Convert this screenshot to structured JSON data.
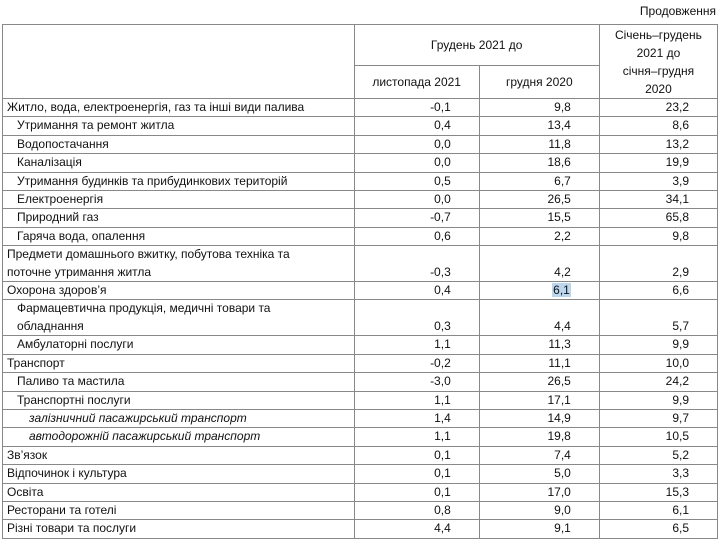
{
  "header": {
    "continuation": "Продовження",
    "group": "Грудень 2021 до",
    "columns": [
      "листопада 2021",
      "грудня 2020"
    ],
    "annual": [
      "Січень–грудень",
      "2021 до",
      "січня–грудня",
      "2020"
    ]
  },
  "table": {
    "rows": [
      {
        "label": [
          "Житло, вода, електроенергія, газ та інші види палива"
        ],
        "level": 0,
        "values": [
          "-0,1",
          "9,8",
          "23,2"
        ]
      },
      {
        "label": [
          "Утримання та ремонт житла"
        ],
        "level": 1,
        "values": [
          "0,4",
          "13,4",
          "8,6"
        ]
      },
      {
        "label": [
          "Водопостачання"
        ],
        "level": 1,
        "values": [
          "0,0",
          "11,8",
          "13,2"
        ]
      },
      {
        "label": [
          "Каналізація"
        ],
        "level": 1,
        "values": [
          "0,0",
          "18,6",
          "19,9"
        ]
      },
      {
        "label": [
          "Утримання будинків та прибудинкових територій"
        ],
        "level": 1,
        "values": [
          "0,5",
          "6,7",
          "3,9"
        ]
      },
      {
        "label": [
          "Електроенергія"
        ],
        "level": 1,
        "values": [
          "0,0",
          "26,5",
          "34,1"
        ]
      },
      {
        "label": [
          "Природний газ"
        ],
        "level": 1,
        "values": [
          "-0,7",
          "15,5",
          "65,8"
        ]
      },
      {
        "label": [
          "Гаряча вода, опалення"
        ],
        "level": 1,
        "values": [
          "0,6",
          "2,2",
          "9,8"
        ]
      },
      {
        "label": [
          "Предмети домашнього вжитку, побутова техніка та",
          "поточне утримання житла"
        ],
        "level": 0,
        "values": [
          "-0,3",
          "4,2",
          "2,9"
        ]
      },
      {
        "label": [
          "Охорона здоров’я"
        ],
        "level": 0,
        "values": [
          "0,4",
          "6,1",
          "6,6"
        ],
        "highlight": 1
      },
      {
        "label": [
          "Фармацевтична продукція, медичні товари та",
          "обладнання"
        ],
        "level": 1,
        "values": [
          "0,3",
          "4,4",
          "5,7"
        ]
      },
      {
        "label": [
          "Амбулаторні послуги"
        ],
        "level": 1,
        "values": [
          "1,1",
          "11,3",
          "9,9"
        ]
      },
      {
        "label": [
          "Транспорт"
        ],
        "level": 0,
        "values": [
          "-0,2",
          "11,1",
          "10,0"
        ]
      },
      {
        "label": [
          "Паливо та мастила"
        ],
        "level": 1,
        "values": [
          "-3,0",
          "26,5",
          "24,2"
        ]
      },
      {
        "label": [
          "Транспортні послуги"
        ],
        "level": 1,
        "values": [
          "1,1",
          "17,1",
          "9,9"
        ]
      },
      {
        "label": [
          "залізничний пасажирський транспорт"
        ],
        "level": 2,
        "values": [
          "1,4",
          "14,9",
          "9,7"
        ]
      },
      {
        "label": [
          "автодорожній пасажирський транспорт"
        ],
        "level": 2,
        "values": [
          "1,1",
          "19,8",
          "10,5"
        ]
      },
      {
        "label": [
          "Зв’язок"
        ],
        "level": 0,
        "values": [
          "0,1",
          "7,4",
          "5,2"
        ]
      },
      {
        "label": [
          "Відпочинок і культура"
        ],
        "level": 0,
        "values": [
          "0,1",
          "5,0",
          "3,3"
        ]
      },
      {
        "label": [
          "Освіта"
        ],
        "level": 0,
        "values": [
          "0,1",
          "17,0",
          "15,3"
        ]
      },
      {
        "label": [
          "Ресторани та готелі"
        ],
        "level": 0,
        "values": [
          "0,8",
          "9,0",
          "6,1"
        ]
      },
      {
        "label": [
          "Різні товари та послуги"
        ],
        "level": 0,
        "values": [
          "4,4",
          "9,1",
          "6,5"
        ]
      }
    ]
  }
}
